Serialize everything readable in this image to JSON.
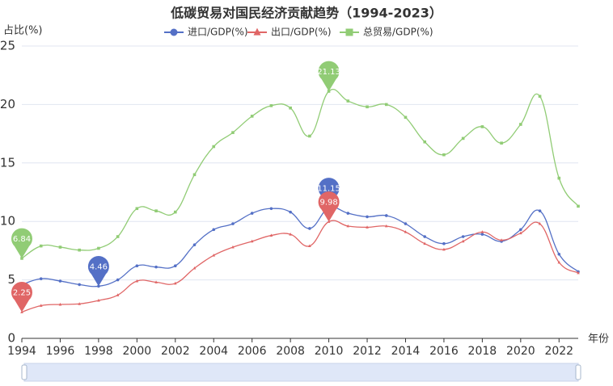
{
  "chart_data": {
    "type": "line",
    "title": "低碳贸易对国民经济贡献趋势（1994-2023）",
    "y_label": "占比(%)",
    "x_label": "年份",
    "x": [
      1994,
      1995,
      1996,
      1997,
      1998,
      1999,
      2000,
      2001,
      2002,
      2003,
      2004,
      2005,
      2006,
      2007,
      2008,
      2009,
      2010,
      2011,
      2012,
      2013,
      2014,
      2015,
      2016,
      2017,
      2018,
      2019,
      2020,
      2021,
      2022,
      2023
    ],
    "series": [
      {
        "name": "进口/GDP(%)",
        "color": "#5470c6",
        "marker": "circle",
        "values": [
          4.59,
          5.1,
          4.9,
          4.6,
          4.46,
          5.0,
          6.2,
          6.1,
          6.2,
          8.0,
          9.3,
          9.8,
          10.7,
          11.1,
          10.8,
          9.4,
          11.15,
          10.7,
          10.4,
          10.5,
          9.8,
          8.7,
          8.1,
          8.7,
          8.9,
          8.3,
          9.3,
          10.9,
          7.2,
          5.7
        ]
      },
      {
        "name": "出口/GDP(%)",
        "color": "#e06666",
        "marker": "triangle",
        "values": [
          2.25,
          2.8,
          2.9,
          2.95,
          3.24,
          3.7,
          4.9,
          4.8,
          4.7,
          6.0,
          7.1,
          7.8,
          8.3,
          8.8,
          8.9,
          7.9,
          9.98,
          9.6,
          9.5,
          9.6,
          9.1,
          8.1,
          7.6,
          8.3,
          9.1,
          8.4,
          9.0,
          9.8,
          6.5,
          5.6
        ]
      },
      {
        "name": "总贸易/GDP(%)",
        "color": "#91cc75",
        "marker": "square",
        "values": [
          6.84,
          7.9,
          7.8,
          7.55,
          7.7,
          8.7,
          11.1,
          10.9,
          10.8,
          14.0,
          16.4,
          17.6,
          19.0,
          19.9,
          19.7,
          17.3,
          21.13,
          20.3,
          19.8,
          20.0,
          18.9,
          16.8,
          15.7,
          17.1,
          18.1,
          16.7,
          18.3,
          20.7,
          13.7,
          11.3
        ]
      }
    ],
    "mark_points": [
      "max",
      "min"
    ],
    "xlim": [
      1994,
      2023
    ],
    "xticks": [
      1994,
      1996,
      1998,
      2000,
      2002,
      2004,
      2006,
      2008,
      2010,
      2012,
      2014,
      2016,
      2018,
      2020,
      2022
    ],
    "ylim": [
      0,
      25
    ],
    "yticks": [
      0,
      5,
      10,
      15,
      20,
      25
    ],
    "grid": true,
    "smooth": true,
    "data_zoom": true
  }
}
